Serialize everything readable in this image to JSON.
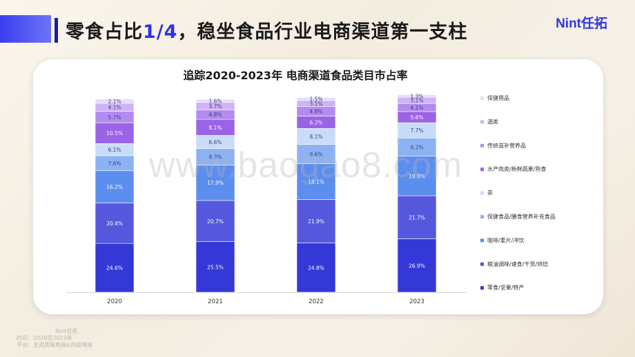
{
  "header": {
    "title_pre": "零食占比",
    "title_highlight": "1/4",
    "title_post": "，稳坐食品行业电商渠道第一支柱",
    "logo": "Nint任拓"
  },
  "watermark": "www.baogao8.com",
  "footer": {
    "brand": "Nint任拓",
    "time": "时间：2020至2023年",
    "platform": "平台：主流货架电商&内容电商"
  },
  "colors": {
    "accent": "#2b34e8",
    "series": [
      "#3338d6",
      "#5558dd",
      "#5c8ef0",
      "#8db2f4",
      "#c8dcfa",
      "#9b63e6",
      "#b38bef",
      "#cdb4f4",
      "#e6dcfa"
    ]
  },
  "chart_data": {
    "type": "bar",
    "stacked": true,
    "title": "追踪2020-2023年 电商渠道食品类目市占率",
    "categories": [
      "2020",
      "2021",
      "2022",
      "2023"
    ],
    "ylim": [
      0,
      100
    ],
    "legend_position": "right",
    "series": [
      {
        "name": "零食/坚果/特产",
        "values": [
          24.6,
          25.5,
          24.8,
          26.9
        ]
      },
      {
        "name": "粮油调味/速食/干货/烘焙",
        "values": [
          20.4,
          20.7,
          21.9,
          21.7
        ]
      },
      {
        "name": "咖啡/麦片/冲饮",
        "values": [
          16.2,
          17.9,
          18.1,
          19.9
        ]
      },
      {
        "name": "保健食品/膳食营养补充食品",
        "values": [
          7.6,
          8.3,
          9.6,
          9.2
        ]
      },
      {
        "name": "茶",
        "values": [
          6.1,
          6.6,
          8.1,
          7.7
        ]
      },
      {
        "name": "水产肉类/新鲜蔬果/熟食",
        "values": [
          10.5,
          8.1,
          6.2,
          5.6
        ]
      },
      {
        "name": "传统滋补营养品",
        "values": [
          5.7,
          4.8,
          4.8,
          4.1
        ]
      },
      {
        "name": "酒类",
        "values": [
          4.1,
          3.7,
          3.1,
          3.1
        ]
      },
      {
        "name": "保健用品",
        "values": [
          2.1,
          1.6,
          1.5,
          1.3
        ]
      }
    ]
  }
}
